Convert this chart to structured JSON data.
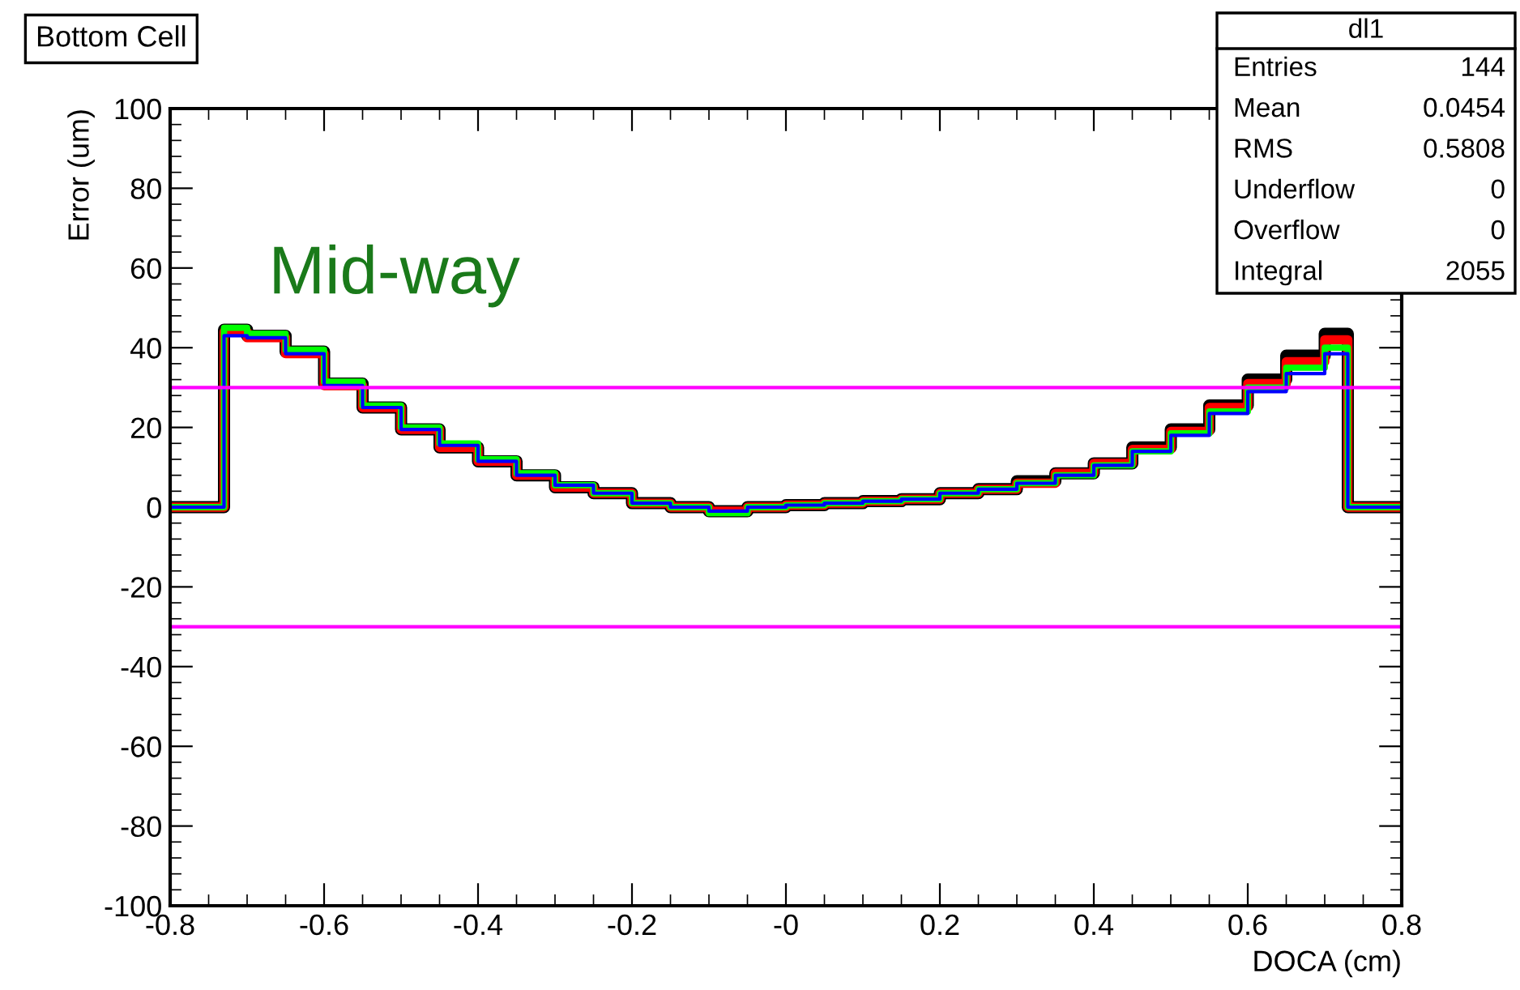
{
  "chart_data": {
    "type": "step",
    "title": "Bottom Cell",
    "xlabel": "DOCA (cm)",
    "ylabel": "Error (um)",
    "annotations": [
      "Mid-way",
      "dl1",
      "Entries",
      "144",
      "Mean",
      "0.0454",
      "RMS",
      "0.5808",
      "Underflow",
      "0",
      "Overflow",
      "0",
      "Integral",
      "2055"
    ],
    "x": [
      -0.8,
      -0.73,
      -0.7,
      -0.65,
      -0.6,
      -0.55,
      -0.5,
      -0.45,
      -0.4,
      -0.35,
      -0.3,
      -0.25,
      -0.2,
      -0.15,
      -0.1,
      -0.05,
      0,
      0.05,
      0.1,
      0.15,
      0.2,
      0.25,
      0.3,
      0.35,
      0.4,
      0.45,
      0.5,
      0.55,
      0.6,
      0.65,
      0.7,
      0.73,
      0.8
    ],
    "series": [
      {
        "color": "#000000",
        "values": [
          0,
          44.5,
          43,
          39,
          31,
          25,
          19.5,
          15,
          11.5,
          8,
          5,
          3.5,
          1,
          0,
          -1,
          0,
          0.5,
          1,
          1.5,
          2,
          3.5,
          4.5,
          6.5,
          8.5,
          11,
          15,
          19.5,
          25.5,
          32,
          38,
          43.5,
          0,
          0
        ]
      },
      {
        "color": "#ff0000",
        "values": [
          0,
          44,
          42.5,
          38.5,
          30.5,
          25,
          19.5,
          15,
          11.5,
          8,
          5,
          3.5,
          1,
          0,
          -1,
          0,
          0.5,
          1,
          1.5,
          2,
          3.5,
          4.5,
          6,
          8.5,
          11,
          14.5,
          19,
          25,
          31,
          36.5,
          42,
          0,
          0
        ]
      },
      {
        "color": "#00ff00",
        "values": [
          0,
          45,
          43.5,
          39.5,
          31.5,
          25.5,
          20,
          16,
          12,
          8.5,
          5.5,
          3.5,
          1,
          0,
          -1.5,
          0,
          0.5,
          1,
          1.5,
          2,
          3.5,
          4.5,
          6,
          8,
          10.5,
          14,
          18.5,
          24,
          30,
          35,
          40,
          0,
          0
        ]
      },
      {
        "color": "#0000ff",
        "values": [
          0,
          43,
          42.5,
          38.5,
          30.5,
          25,
          19.5,
          15.5,
          11.5,
          8,
          5.5,
          3.5,
          1,
          0,
          -1,
          0,
          0.5,
          1,
          1.5,
          2,
          3.5,
          4.5,
          6,
          8,
          10.5,
          14,
          18,
          23.5,
          29,
          33.5,
          38.5,
          0,
          0
        ]
      }
    ],
    "ref_lines": [
      {
        "axis": "y",
        "value": 30,
        "color": "#ff00ff"
      },
      {
        "axis": "y",
        "value": -30,
        "color": "#ff00ff"
      }
    ],
    "xlim": [
      -0.8,
      0.8
    ],
    "ylim": [
      -100,
      100
    ],
    "xticks": [
      -0.8,
      -0.6,
      -0.4,
      -0.2,
      {
        "value": 0,
        "label": "-0"
      },
      0.2,
      0.4,
      0.6,
      0.8
    ],
    "yticks": [
      -100,
      -80,
      -60,
      -40,
      -20,
      0,
      20,
      40,
      60,
      80,
      100
    ]
  }
}
